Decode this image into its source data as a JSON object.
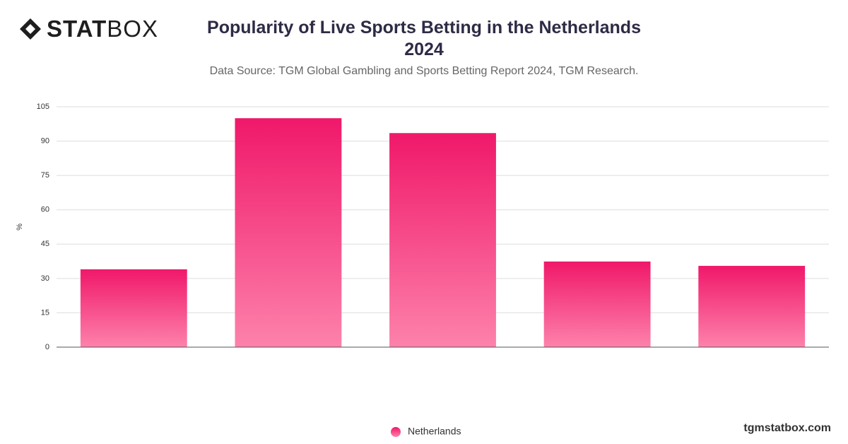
{
  "logo": {
    "bold": "STAT",
    "light": "BOX"
  },
  "footer": "tgmstatbox.com",
  "chart_data": {
    "type": "bar",
    "title": "Popularity of Live Sports Betting in the Netherlands 2024",
    "subtitle": "Data Source: TGM Global Gambling and Sports Betting Report 2024, TGM Research.",
    "y_label": "%",
    "categories": [
      null,
      null,
      null,
      null,
      null
    ],
    "series": [
      {
        "name": "Netherlands",
        "color": "#f0186a",
        "values": [
          34,
          100,
          93.5,
          37.4,
          35.5
        ]
      }
    ],
    "ylim": [
      0,
      105
    ],
    "yticks": [
      0,
      15,
      30,
      45,
      60,
      75,
      90,
      105
    ],
    "grid": true,
    "legend": "bottom"
  }
}
